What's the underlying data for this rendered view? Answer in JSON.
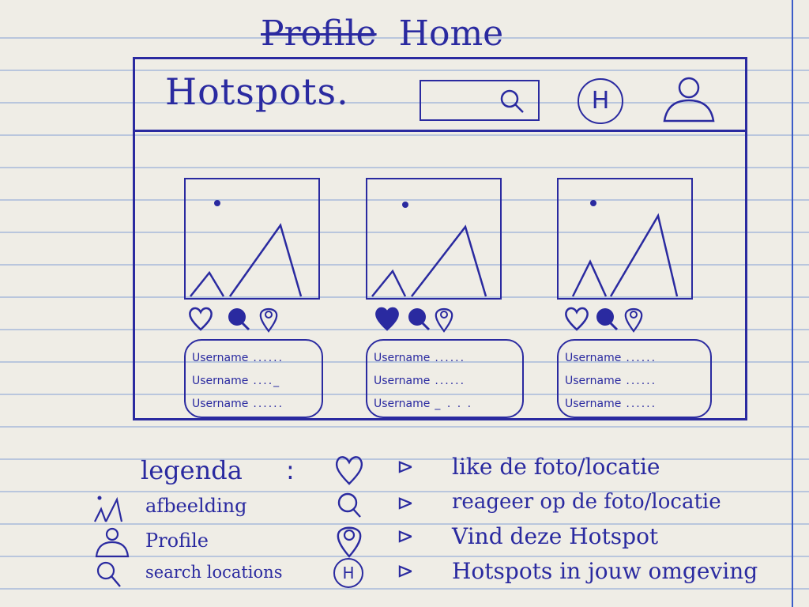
{
  "page_title": {
    "scratched": "Profile",
    "text": "Home"
  },
  "header": {
    "brand": "Hotspots.",
    "hotspot_button": "H"
  },
  "cards": [
    {
      "heart_filled": false,
      "comments": [
        {
          "user": "Username",
          "dots": "......"
        },
        {
          "user": "Username",
          "dots": "...._"
        },
        {
          "user": "Username",
          "dots": "......"
        }
      ]
    },
    {
      "heart_filled": true,
      "comments": [
        {
          "user": "Username",
          "dots": "......"
        },
        {
          "user": "Username",
          "dots": "......"
        },
        {
          "user": "Username",
          "dots": "_ . . ."
        }
      ]
    },
    {
      "heart_filled": false,
      "comments": [
        {
          "user": "Username",
          "dots": "......"
        },
        {
          "user": "Username",
          "dots": "......"
        },
        {
          "user": "Username",
          "dots": "......"
        }
      ]
    }
  ],
  "legend": {
    "title": "legenda",
    "colon": ":",
    "arrow": "⊳",
    "left": [
      {
        "icon": "image-icon",
        "text": "afbeelding"
      },
      {
        "icon": "profile-icon",
        "text": "Profile"
      },
      {
        "icon": "search-icon",
        "text": "search locations"
      }
    ],
    "right": [
      {
        "icon": "heart-icon",
        "text": "like de foto/locatie"
      },
      {
        "icon": "comment-icon",
        "text": "reageer op de foto/locatie"
      },
      {
        "icon": "location-pin-icon",
        "text": "Vind deze Hotspot"
      },
      {
        "icon": "hotspot-h-icon",
        "text": "Hotspots in jouw omgeving",
        "letter": "H"
      }
    ]
  },
  "colors": {
    "ink": "#2a2aa0",
    "paper": "#efede6",
    "rule": "#b9c6dd",
    "margin": "#3b5cc8"
  }
}
